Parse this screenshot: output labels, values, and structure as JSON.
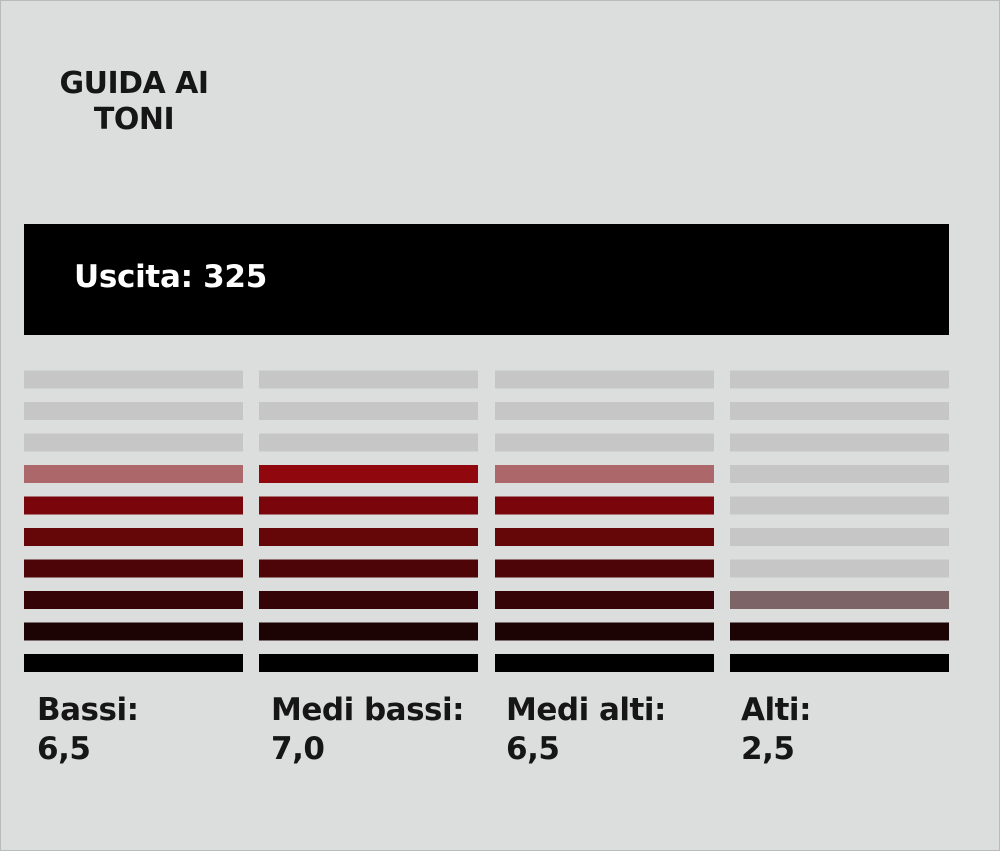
{
  "title_lines": [
    "GUIDA AI",
    "TONI"
  ],
  "output": {
    "label": "Uscita: 325"
  },
  "colors": {
    "background": "#dcdedd",
    "inactive_segment": "#c6c6c6",
    "output_bar": "#000000",
    "text": "#161616"
  },
  "chart_data": {
    "type": "bar",
    "segments_per_band": 10,
    "scale_max": 10,
    "categories": [
      "Bassi:",
      "Medi bassi:",
      "Medi alti:",
      "Alti:"
    ],
    "values": [
      "6,5",
      "7,0",
      "6,5",
      "2,5"
    ],
    "numeric_values": [
      6.5,
      7.0,
      6.5,
      2.5
    ],
    "segment_colors": [
      "#000000",
      "#1c0304",
      "#340407",
      "#4d0508",
      "#650609",
      "#7a060b",
      "#90070d",
      "#a8090f",
      "#bb0a12",
      "#cc0c14"
    ]
  }
}
